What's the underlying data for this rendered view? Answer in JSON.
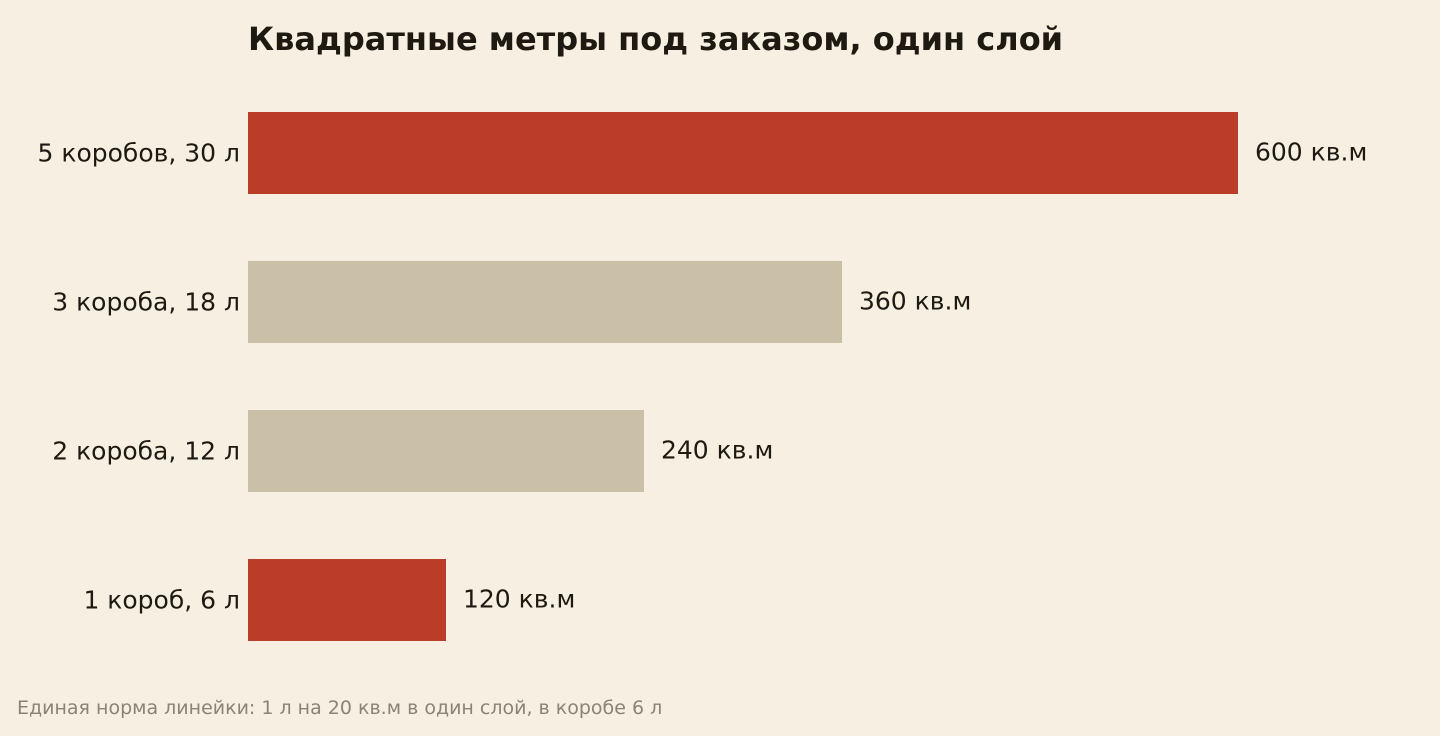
{
  "chart_data": {
    "type": "bar",
    "orientation": "horizontal",
    "title": "Квадратные метры под заказом, один слой",
    "categories": [
      "5 коробов, 30 л",
      "3 короба, 18 л",
      "2 короба, 12 л",
      "1 короб, 6 л"
    ],
    "values": [
      600,
      360,
      240,
      120
    ],
    "value_labels": [
      "600 кв.м",
      "360 кв.м",
      "240 кв.м",
      "120 кв.м"
    ],
    "highlighted": [
      true,
      false,
      false,
      true
    ],
    "xlim": [
      0,
      600
    ],
    "grid": false,
    "legend": "none",
    "footnote": "Единая норма линейки: 1 л на 20 кв.м в один слой, в коробе 6 л"
  },
  "colors": {
    "background": "#f6efe2",
    "highlight_bar": "#bc3d27",
    "muted_bar": "#c9c0a7",
    "text": "#1e1a12",
    "footnote_text": "#8a8478"
  }
}
